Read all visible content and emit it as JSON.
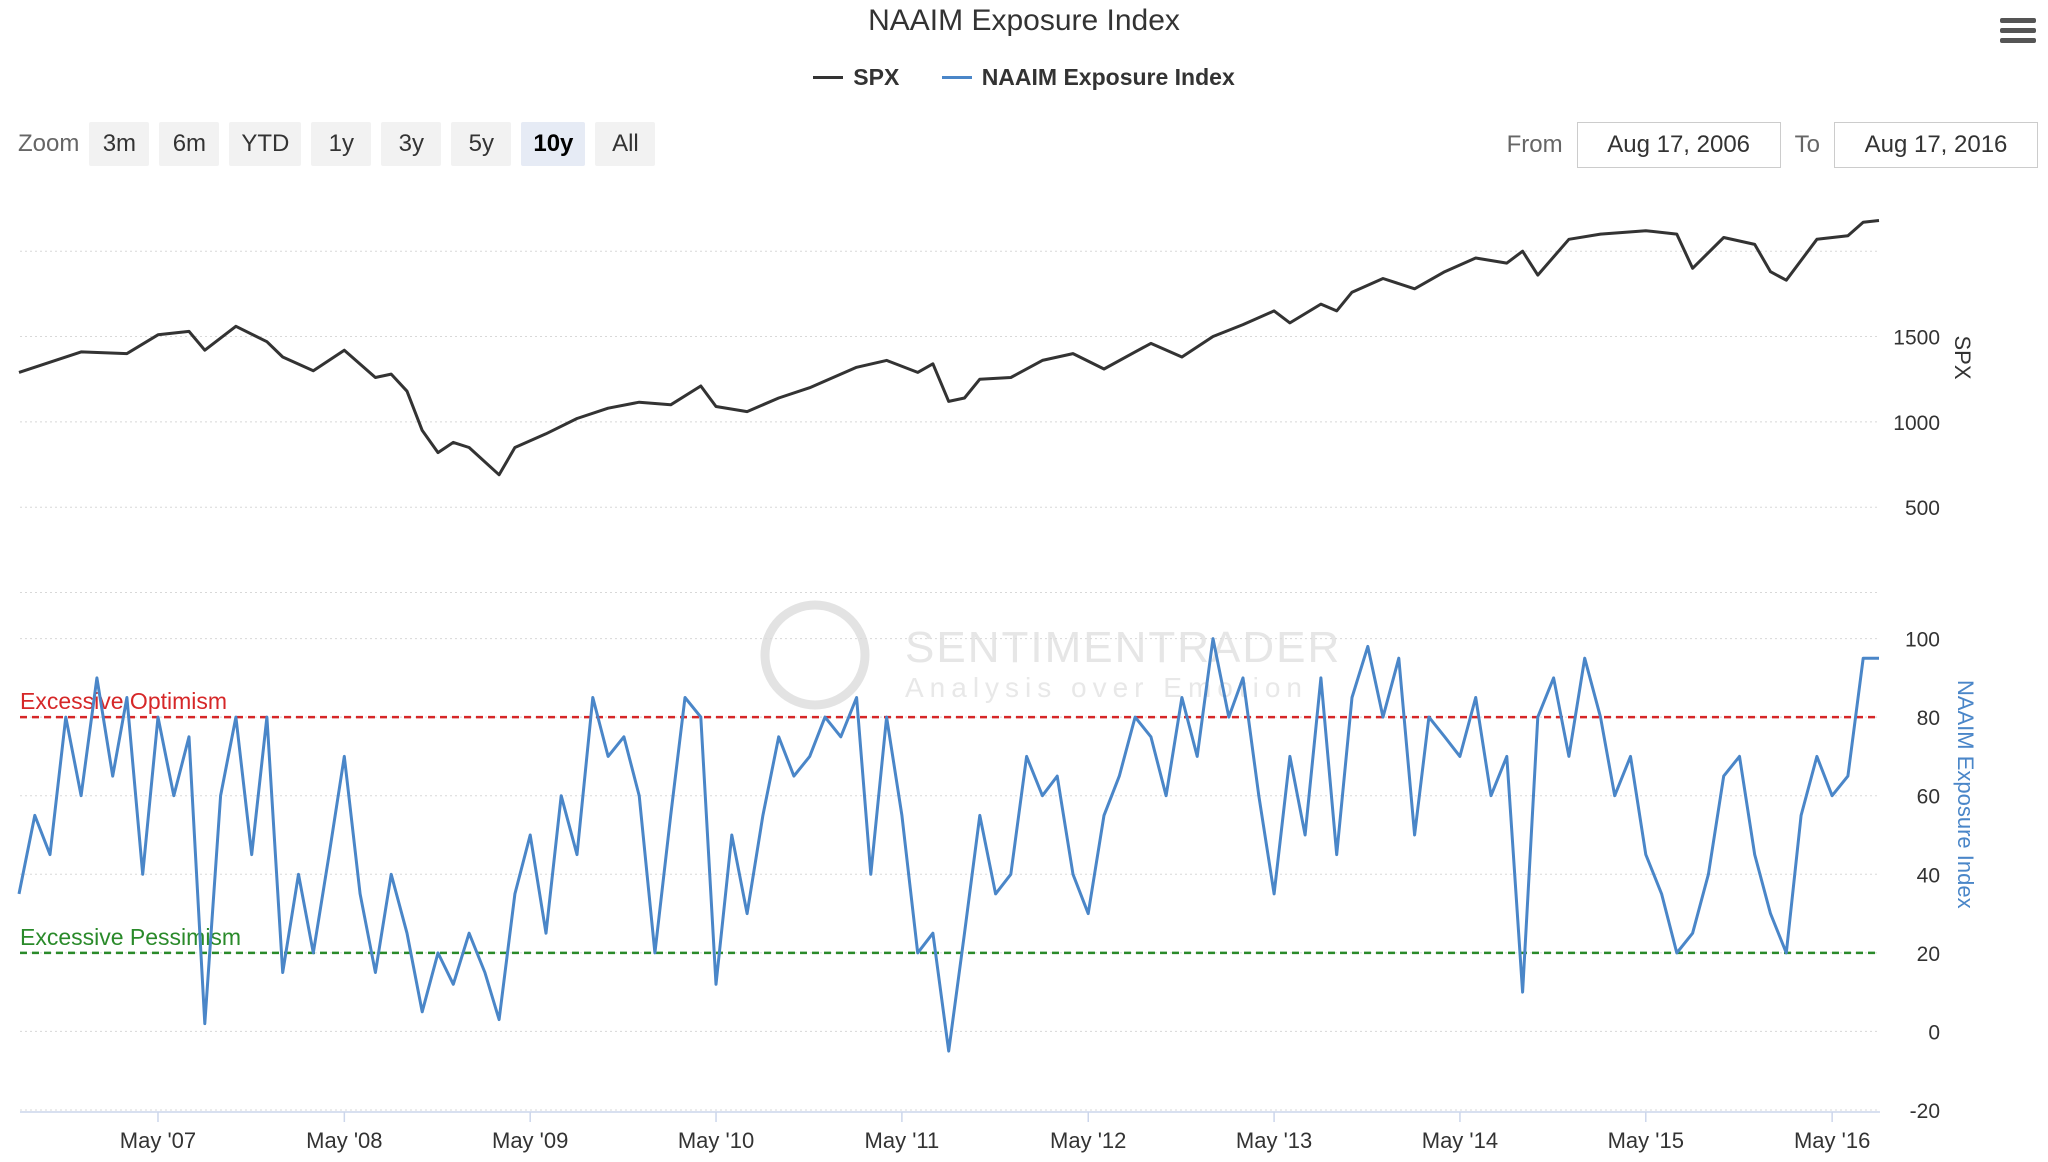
{
  "title": "NAAIM Exposure Index",
  "legend": [
    {
      "label": "SPX",
      "color": "#333333"
    },
    {
      "label": "NAAIM Exposure Index",
      "color": "#4a86c8"
    }
  ],
  "zoom": {
    "label": "Zoom",
    "buttons": [
      "3m",
      "6m",
      "YTD",
      "1y",
      "3y",
      "5y",
      "10y",
      "All"
    ],
    "active": "10y"
  },
  "range": {
    "from_label": "From",
    "from_value": "Aug 17, 2006",
    "to_label": "To",
    "to_value": "Aug 17, 2016"
  },
  "menu_icon": "hamburger-menu-icon",
  "watermark": {
    "name": "SENTIMENTRADER",
    "tagline": "Analysis over Emotion"
  },
  "chart_data": [
    {
      "type": "line",
      "name": "SPX",
      "ylabel": "SPX",
      "yticks": [
        500,
        1000,
        1500
      ],
      "ylim": [
        220,
        2300
      ],
      "color": "#333333",
      "x_start": "2006-08-17",
      "x_end": "2016-08-17",
      "points": [
        [
          "2006-08",
          1290
        ],
        [
          "2006-12",
          1410
        ],
        [
          "2007-03",
          1400
        ],
        [
          "2007-05",
          1510
        ],
        [
          "2007-07",
          1530
        ],
        [
          "2007-08",
          1420
        ],
        [
          "2007-10",
          1560
        ],
        [
          "2007-12",
          1470
        ],
        [
          "2008-01",
          1380
        ],
        [
          "2008-03",
          1300
        ],
        [
          "2008-05",
          1420
        ],
        [
          "2008-07",
          1260
        ],
        [
          "2008-08",
          1280
        ],
        [
          "2008-09",
          1180
        ],
        [
          "2008-10",
          950
        ],
        [
          "2008-11",
          820
        ],
        [
          "2008-12",
          880
        ],
        [
          "2009-01",
          850
        ],
        [
          "2009-03",
          690
        ],
        [
          "2009-04",
          850
        ],
        [
          "2009-06",
          930
        ],
        [
          "2009-08",
          1020
        ],
        [
          "2009-10",
          1080
        ],
        [
          "2009-12",
          1115
        ],
        [
          "2010-02",
          1100
        ],
        [
          "2010-04",
          1210
        ],
        [
          "2010-05",
          1090
        ],
        [
          "2010-07",
          1060
        ],
        [
          "2010-09",
          1140
        ],
        [
          "2010-11",
          1200
        ],
        [
          "2011-02",
          1320
        ],
        [
          "2011-04",
          1360
        ],
        [
          "2011-06",
          1290
        ],
        [
          "2011-07",
          1340
        ],
        [
          "2011-08",
          1120
        ],
        [
          "2011-09",
          1140
        ],
        [
          "2011-10",
          1250
        ],
        [
          "2011-12",
          1260
        ],
        [
          "2012-02",
          1360
        ],
        [
          "2012-04",
          1400
        ],
        [
          "2012-06",
          1310
        ],
        [
          "2012-08",
          1410
        ],
        [
          "2012-09",
          1460
        ],
        [
          "2012-11",
          1380
        ],
        [
          "2013-01",
          1500
        ],
        [
          "2013-03",
          1570
        ],
        [
          "2013-05",
          1650
        ],
        [
          "2013-06",
          1580
        ],
        [
          "2013-08",
          1690
        ],
        [
          "2013-09",
          1650
        ],
        [
          "2013-10",
          1760
        ],
        [
          "2013-12",
          1840
        ],
        [
          "2014-02",
          1780
        ],
        [
          "2014-04",
          1880
        ],
        [
          "2014-06",
          1960
        ],
        [
          "2014-08",
          1930
        ],
        [
          "2014-09",
          2000
        ],
        [
          "2014-10",
          1860
        ],
        [
          "2014-12",
          2070
        ],
        [
          "2015-02",
          2100
        ],
        [
          "2015-05",
          2120
        ],
        [
          "2015-07",
          2100
        ],
        [
          "2015-08",
          1900
        ],
        [
          "2015-10",
          2080
        ],
        [
          "2015-12",
          2040
        ],
        [
          "2016-01",
          1880
        ],
        [
          "2016-02",
          1830
        ],
        [
          "2016-04",
          2070
        ],
        [
          "2016-06",
          2090
        ],
        [
          "2016-07",
          2170
        ],
        [
          "2016-08",
          2180
        ]
      ]
    },
    {
      "type": "line",
      "name": "NAAIM Exposure Index",
      "ylabel": "NAAIM Exposure Index",
      "yticks": [
        -20,
        0,
        20,
        40,
        60,
        80,
        100
      ],
      "ylim": [
        -20,
        120
      ],
      "color": "#4a86c8",
      "x_start": "2006-08-17",
      "x_end": "2016-08-17",
      "points": [
        [
          "2006-08",
          35
        ],
        [
          "2006-09",
          55
        ],
        [
          "2006-10",
          45
        ],
        [
          "2006-11",
          80
        ],
        [
          "2006-12",
          60
        ],
        [
          "2007-01",
          90
        ],
        [
          "2007-02",
          65
        ],
        [
          "2007-03",
          85
        ],
        [
          "2007-04",
          40
        ],
        [
          "2007-05",
          80
        ],
        [
          "2007-06",
          60
        ],
        [
          "2007-07",
          75
        ],
        [
          "2007-08",
          2
        ],
        [
          "2007-09",
          60
        ],
        [
          "2007-10",
          80
        ],
        [
          "2007-11",
          45
        ],
        [
          "2007-12",
          80
        ],
        [
          "2008-01",
          15
        ],
        [
          "2008-02",
          40
        ],
        [
          "2008-03",
          20
        ],
        [
          "2008-04",
          45
        ],
        [
          "2008-05",
          70
        ],
        [
          "2008-06",
          35
        ],
        [
          "2008-07",
          15
        ],
        [
          "2008-08",
          40
        ],
        [
          "2008-09",
          25
        ],
        [
          "2008-10",
          5
        ],
        [
          "2008-11",
          20
        ],
        [
          "2008-12",
          12
        ],
        [
          "2009-01",
          25
        ],
        [
          "2009-02",
          15
        ],
        [
          "2009-03",
          3
        ],
        [
          "2009-04",
          35
        ],
        [
          "2009-05",
          50
        ],
        [
          "2009-06",
          25
        ],
        [
          "2009-07",
          60
        ],
        [
          "2009-08",
          45
        ],
        [
          "2009-09",
          85
        ],
        [
          "2009-10",
          70
        ],
        [
          "2009-11",
          75
        ],
        [
          "2009-12",
          60
        ],
        [
          "2010-01",
          20
        ],
        [
          "2010-02",
          55
        ],
        [
          "2010-03",
          85
        ],
        [
          "2010-04",
          80
        ],
        [
          "2010-05",
          12
        ],
        [
          "2010-06",
          50
        ],
        [
          "2010-07",
          30
        ],
        [
          "2010-08",
          55
        ],
        [
          "2010-09",
          75
        ],
        [
          "2010-10",
          65
        ],
        [
          "2010-11",
          70
        ],
        [
          "2010-12",
          80
        ],
        [
          "2011-01",
          75
        ],
        [
          "2011-02",
          85
        ],
        [
          "2011-03",
          40
        ],
        [
          "2011-04",
          80
        ],
        [
          "2011-05",
          55
        ],
        [
          "2011-06",
          20
        ],
        [
          "2011-07",
          25
        ],
        [
          "2011-08",
          -5
        ],
        [
          "2011-09",
          25
        ],
        [
          "2011-10",
          55
        ],
        [
          "2011-11",
          35
        ],
        [
          "2011-12",
          40
        ],
        [
          "2012-01",
          70
        ],
        [
          "2012-02",
          60
        ],
        [
          "2012-03",
          65
        ],
        [
          "2012-04",
          40
        ],
        [
          "2012-05",
          30
        ],
        [
          "2012-06",
          55
        ],
        [
          "2012-07",
          65
        ],
        [
          "2012-08",
          80
        ],
        [
          "2012-09",
          75
        ],
        [
          "2012-10",
          60
        ],
        [
          "2012-11",
          85
        ],
        [
          "2012-12",
          70
        ],
        [
          "2013-01",
          100
        ],
        [
          "2013-02",
          80
        ],
        [
          "2013-03",
          90
        ],
        [
          "2013-04",
          60
        ],
        [
          "2013-05",
          35
        ],
        [
          "2013-06",
          70
        ],
        [
          "2013-07",
          50
        ],
        [
          "2013-08",
          90
        ],
        [
          "2013-09",
          45
        ],
        [
          "2013-10",
          85
        ],
        [
          "2013-11",
          98
        ],
        [
          "2013-12",
          80
        ],
        [
          "2014-01",
          95
        ],
        [
          "2014-02",
          50
        ],
        [
          "2014-03",
          80
        ],
        [
          "2014-04",
          75
        ],
        [
          "2014-05",
          70
        ],
        [
          "2014-06",
          85
        ],
        [
          "2014-07",
          60
        ],
        [
          "2014-08",
          70
        ],
        [
          "2014-09",
          10
        ],
        [
          "2014-10",
          80
        ],
        [
          "2014-11",
          90
        ],
        [
          "2014-12",
          70
        ],
        [
          "2015-01",
          95
        ],
        [
          "2015-02",
          80
        ],
        [
          "2015-03",
          60
        ],
        [
          "2015-04",
          70
        ],
        [
          "2015-05",
          45
        ],
        [
          "2015-06",
          35
        ],
        [
          "2015-07",
          20
        ],
        [
          "2015-08",
          25
        ],
        [
          "2015-09",
          40
        ],
        [
          "2015-10",
          65
        ],
        [
          "2015-11",
          70
        ],
        [
          "2015-12",
          45
        ],
        [
          "2016-01",
          30
        ],
        [
          "2016-02",
          20
        ],
        [
          "2016-03",
          55
        ],
        [
          "2016-04",
          70
        ],
        [
          "2016-05",
          60
        ],
        [
          "2016-06",
          65
        ],
        [
          "2016-07",
          95
        ],
        [
          "2016-08",
          95
        ]
      ],
      "reference_lines": [
        {
          "label": "Excessive Optimism",
          "value": 80,
          "color": "#d62728"
        },
        {
          "label": "Excessive Pessimism",
          "value": 20,
          "color": "#2a8a2a"
        }
      ]
    }
  ],
  "xticks": [
    {
      "label": "May '07",
      "date": "2007-05"
    },
    {
      "label": "May '08",
      "date": "2008-05"
    },
    {
      "label": "May '09",
      "date": "2009-05"
    },
    {
      "label": "May '10",
      "date": "2010-05"
    },
    {
      "label": "May '11",
      "date": "2011-05"
    },
    {
      "label": "May '12",
      "date": "2012-05"
    },
    {
      "label": "May '13",
      "date": "2013-05"
    },
    {
      "label": "May '14",
      "date": "2014-05"
    },
    {
      "label": "May '15",
      "date": "2015-05"
    },
    {
      "label": "May '16",
      "date": "2016-05"
    }
  ]
}
